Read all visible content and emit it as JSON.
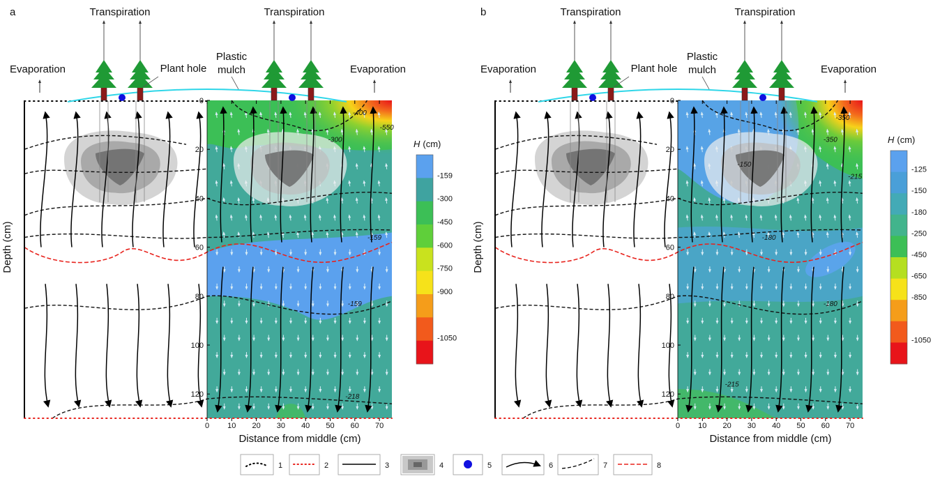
{
  "panels": [
    {
      "label": "a",
      "transpiration": [
        "Transpiration",
        "Transpiration"
      ],
      "evaporation": [
        "Evaporation",
        "Evaporation"
      ],
      "plant_hole": "Plant hole",
      "plastic_mulch": [
        "Plastic",
        "mulch"
      ],
      "y_axis_label": "Depth (cm)",
      "x_axis_label": "Distance from middle (cm)",
      "yticks": [
        "0",
        "20",
        "40",
        "60",
        "80",
        "100",
        "120"
      ],
      "xticks": [
        "0",
        "10",
        "20",
        "30",
        "40",
        "50",
        "60",
        "70"
      ],
      "colorbar_title": {
        "symbol": "H",
        "unit": "(cm)"
      },
      "colorbar": [
        "-159",
        "-300",
        "-450",
        "-600",
        "-750",
        "-900",
        "-1050"
      ],
      "contour_labels": [
        "-400",
        "-300",
        "-550",
        "-159",
        "-159",
        "-218"
      ]
    },
    {
      "label": "b",
      "transpiration": [
        "Transpiration",
        "Transpiration"
      ],
      "evaporation": [
        "Evaporation",
        "Evaporation"
      ],
      "plant_hole": "Plant hole",
      "plastic_mulch": [
        "Plastic",
        "mulch"
      ],
      "y_axis_label": "Depth (cm)",
      "x_axis_label": "Distance from middle (cm)",
      "yticks": [
        "0",
        "20",
        "40",
        "60",
        "80",
        "100",
        "120"
      ],
      "xticks": [
        "0",
        "10",
        "20",
        "30",
        "40",
        "50",
        "60",
        "70"
      ],
      "colorbar_title": {
        "symbol": "H",
        "unit": "(cm)"
      },
      "colorbar": [
        "-125",
        "-150",
        "-180",
        "-250",
        "-450",
        "-650",
        "-850",
        "-1050"
      ],
      "contour_labels": [
        "-350",
        "-350",
        "-150",
        "-215",
        "-180",
        "-180",
        "-215"
      ]
    }
  ],
  "legend": {
    "items": [
      "1",
      "2",
      "3",
      "4",
      "5",
      "6",
      "7",
      "8"
    ]
  }
}
